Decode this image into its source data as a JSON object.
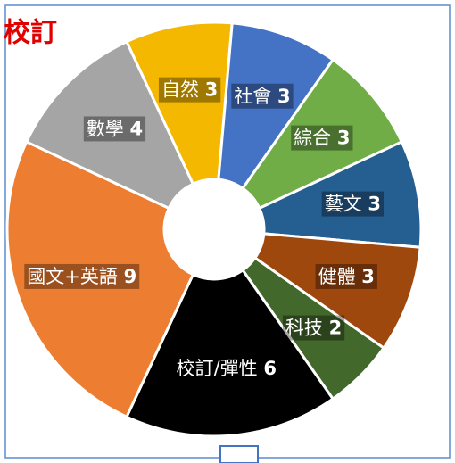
{
  "chart_data": {
    "type": "donut",
    "title": "校訂",
    "categories": [
      "自然",
      "社會",
      "綜合",
      "藝文",
      "健體",
      "科技",
      "校訂/彈性",
      "國文+英語",
      "數學"
    ],
    "values": [
      3,
      3,
      3,
      3,
      3,
      2,
      6,
      9,
      4
    ],
    "colors": [
      "#f5b800",
      "#4472c4",
      "#70ad47",
      "#255e91",
      "#9e480e",
      "#43682b",
      "#000000",
      "#ed7d31",
      "#a5a5a5"
    ]
  }
}
